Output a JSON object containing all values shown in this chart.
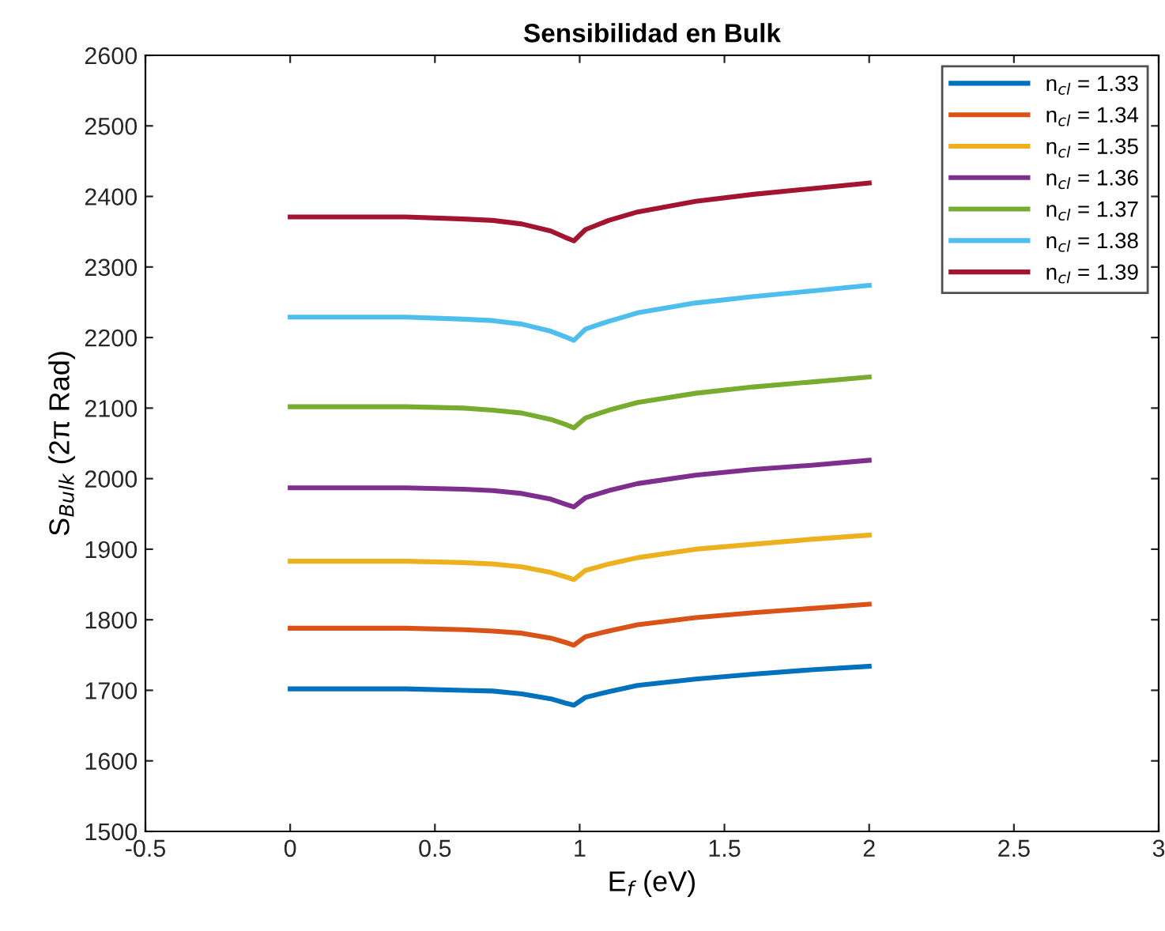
{
  "chart_data": {
    "type": "line",
    "title": "Sensibilidad en Bulk",
    "xlabel": "E$_{f}$ (eV)",
    "ylabel": "S$_{Bulk}$ (2π Rad)",
    "x": [
      0,
      0.2,
      0.4,
      0.6,
      0.7,
      0.8,
      0.9,
      0.95,
      0.98,
      1.02,
      1.1,
      1.2,
      1.4,
      1.6,
      1.8,
      2.0
    ],
    "xlim": [
      -0.5,
      3
    ],
    "xticks": [
      -0.5,
      0,
      0.5,
      1,
      1.5,
      2,
      2.5,
      3
    ],
    "ylim": [
      1500,
      2600
    ],
    "yticks": [
      1500,
      1600,
      1700,
      1800,
      1900,
      2000,
      2100,
      2200,
      2300,
      2400,
      2500,
      2600
    ],
    "grid": false,
    "legend": "top right",
    "marker": "none",
    "line_style": "solid",
    "series": [
      {
        "name": "n$_{cl}$ = 1.33",
        "color": "#0072bd",
        "values": [
          1702,
          1702,
          1702,
          1700,
          1699,
          1695,
          1688,
          1682,
          1679,
          1690,
          1698,
          1707,
          1716,
          1723,
          1729,
          1734
        ]
      },
      {
        "name": "n$_{cl}$ = 1.34",
        "color": "#d95319",
        "values": [
          1788,
          1788,
          1788,
          1786,
          1784,
          1781,
          1774,
          1768,
          1764,
          1776,
          1784,
          1793,
          1803,
          1810,
          1816,
          1822
        ]
      },
      {
        "name": "n$_{cl}$ = 1.35",
        "color": "#edb120",
        "values": [
          1883,
          1883,
          1883,
          1881,
          1879,
          1875,
          1867,
          1861,
          1857,
          1870,
          1879,
          1888,
          1900,
          1907,
          1914,
          1920
        ]
      },
      {
        "name": "n$_{cl}$ = 1.36",
        "color": "#7e2f8e",
        "values": [
          1987,
          1987,
          1987,
          1985,
          1983,
          1979,
          1971,
          1964,
          1960,
          1973,
          1983,
          1993,
          2005,
          2013,
          2019,
          2026
        ]
      },
      {
        "name": "n$_{cl}$ = 1.37",
        "color": "#77ac30",
        "values": [
          2102,
          2102,
          2102,
          2100,
          2097,
          2093,
          2084,
          2077,
          2072,
          2086,
          2097,
          2108,
          2121,
          2130,
          2137,
          2144
        ]
      },
      {
        "name": "n$_{cl}$ = 1.38",
        "color": "#4dbeee",
        "values": [
          2229,
          2229,
          2229,
          2226,
          2224,
          2219,
          2209,
          2201,
          2196,
          2212,
          2223,
          2235,
          2249,
          2258,
          2266,
          2274
        ]
      },
      {
        "name": "n$_{cl}$ = 1.39",
        "color": "#a2142f",
        "values": [
          2371,
          2371,
          2371,
          2368,
          2366,
          2361,
          2351,
          2342,
          2337,
          2353,
          2366,
          2378,
          2393,
          2403,
          2411,
          2419
        ]
      }
    ]
  }
}
